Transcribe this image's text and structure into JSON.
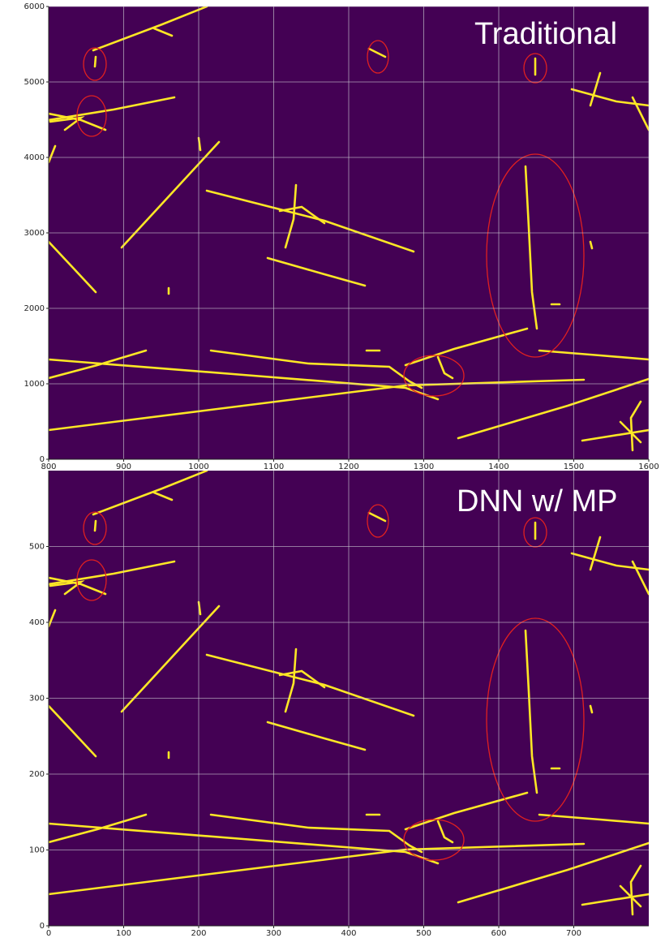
{
  "chart_data": [
    {
      "type": "heatmap",
      "title": "Traditional",
      "xlim": [
        800,
        1600
      ],
      "xticks": [
        800,
        900,
        1000,
        1100,
        1200,
        1300,
        1400,
        1500,
        1600
      ],
      "ylim": [
        0,
        6000
      ],
      "yticks": [
        0,
        1000,
        2000,
        3000,
        4000,
        5000,
        6000
      ],
      "grid": true
    },
    {
      "type": "heatmap",
      "title": "DNN w/ MP",
      "xlim": [
        0,
        800
      ],
      "xticks": [
        0,
        100,
        200,
        300,
        400,
        500,
        600,
        700
      ],
      "ylim": [
        0,
        600
      ],
      "yticks": [
        0,
        100,
        200,
        300,
        400,
        500
      ],
      "grid": true
    }
  ]
}
